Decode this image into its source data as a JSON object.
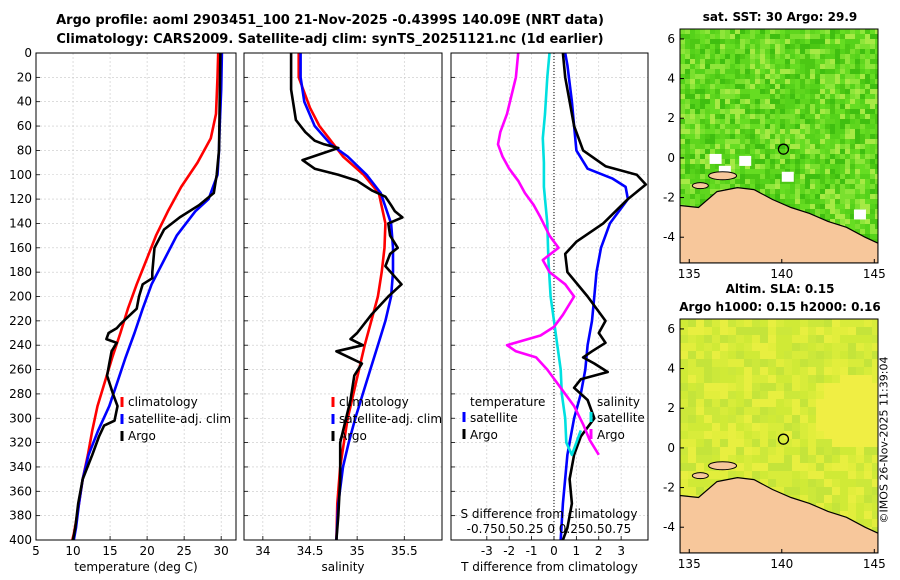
{
  "header": {
    "title_line1": "Argo profile: aoml 2903451_100 21-Nov-2025 -0.4399S 140.09E (NRT data)",
    "title_line2": "Climatology: CARS2009. Satellite-adj clim: synTS_20251121.nc (1d earlier)"
  },
  "colors": {
    "climatology": "#ff0000",
    "satellite": "#0000ff",
    "argo": "#000000",
    "argo_salinity_diff": "#ff00ff",
    "sat_salinity_diff": "#00e0e0",
    "land": "#f7c79b"
  },
  "chart_data": [
    {
      "type": "line",
      "panel": "temperature",
      "xlabel": "temperature (deg C)",
      "ylabel": "",
      "xlim": [
        5,
        32
      ],
      "ylim": [
        400,
        0
      ],
      "xticks": [
        5,
        10,
        15,
        20,
        25,
        30
      ],
      "yticks": [
        0,
        20,
        40,
        60,
        80,
        100,
        120,
        140,
        160,
        180,
        200,
        220,
        240,
        260,
        280,
        300,
        320,
        340,
        360,
        380,
        400
      ],
      "grid": true,
      "legend": [
        "climatology",
        "satellite-adj. clim",
        "Argo"
      ],
      "legend_location": "lower-right",
      "series": [
        {
          "name": "climatology",
          "color": "#ff0000",
          "x": [
            29.6,
            29.5,
            29.3,
            28.6,
            26.8,
            24.6,
            22.8,
            21.2,
            19.9,
            18.6,
            17.4,
            16.4,
            15.3,
            14.3,
            13.3,
            12.6,
            12.0,
            11.3,
            10.8,
            10.4,
            10.1,
            9.9
          ],
          "y": [
            0,
            20,
            50,
            70,
            90,
            110,
            130,
            150,
            170,
            190,
            210,
            230,
            250,
            270,
            290,
            310,
            330,
            350,
            370,
            385,
            395,
            400
          ]
        },
        {
          "name": "satellite-adj. clim",
          "color": "#0000ff",
          "x": [
            30.1,
            30.0,
            29.8,
            29.7,
            29.5,
            28.9,
            28.3,
            26.5,
            24.0,
            22.3,
            20.6,
            19.4,
            18.3,
            17.1,
            16.0,
            14.9,
            13.4,
            12.1,
            11.3,
            10.8,
            10.4,
            10.1
          ],
          "y": [
            0,
            30,
            60,
            80,
            100,
            110,
            120,
            130,
            150,
            170,
            190,
            210,
            230,
            250,
            270,
            290,
            310,
            330,
            350,
            370,
            390,
            400
          ]
        },
        {
          "name": "Argo",
          "color": "#000000",
          "x": [
            29.9,
            29.8,
            29.7,
            29.4,
            29.0,
            27.0,
            24.4,
            22.3,
            21.0,
            20.7,
            20.7,
            19.4,
            18.9,
            18.6,
            16.5,
            15.9,
            14.8,
            14.5,
            15.9,
            15.2,
            14.9,
            14.6,
            15.4,
            16.0,
            15.6,
            14.2,
            13.5,
            12.6,
            11.3,
            10.7,
            10.3,
            10.0
          ],
          "y": [
            0,
            40,
            80,
            100,
            115,
            125,
            135,
            145,
            160,
            180,
            185,
            190,
            200,
            210,
            222,
            226,
            230,
            235,
            238,
            245,
            255,
            265,
            280,
            290,
            302,
            306,
            315,
            330,
            350,
            370,
            390,
            400
          ]
        }
      ]
    },
    {
      "type": "line",
      "panel": "salinity",
      "xlabel": "salinity",
      "ylabel": "",
      "xlim": [
        33.8,
        35.9
      ],
      "ylim": [
        400,
        0
      ],
      "xticks": [
        34,
        34.5,
        35,
        35.5
      ],
      "grid": true,
      "legend": [
        "climatology",
        "satellite-adj. clim",
        "Argo"
      ],
      "legend_location": "lower-right",
      "series": [
        {
          "name": "climatology",
          "color": "#ff0000",
          "x": [
            34.38,
            34.38,
            34.5,
            34.6,
            34.7,
            34.85,
            35.07,
            35.23,
            35.3,
            35.29,
            35.26,
            35.22,
            35.15,
            35.08,
            35.02,
            34.96,
            34.9,
            34.86,
            34.82,
            34.79,
            34.78
          ],
          "y": [
            0,
            20,
            45,
            60,
            70,
            85,
            100,
            115,
            140,
            160,
            180,
            200,
            220,
            240,
            260,
            280,
            300,
            320,
            340,
            370,
            400
          ]
        },
        {
          "name": "satellite-adj. clim",
          "color": "#0000ff",
          "x": [
            34.4,
            34.4,
            34.44,
            34.55,
            34.72,
            34.9,
            35.1,
            35.25,
            35.36,
            35.38,
            35.38,
            35.36,
            35.3,
            35.22,
            35.14,
            35.06,
            34.98,
            34.91,
            34.85,
            34.8,
            34.78
          ],
          "y": [
            0,
            20,
            40,
            60,
            75,
            85,
            100,
            115,
            140,
            160,
            180,
            200,
            220,
            240,
            260,
            280,
            300,
            320,
            340,
            370,
            400
          ]
        },
        {
          "name": "Argo",
          "color": "#000000",
          "x": [
            34.3,
            34.3,
            34.35,
            34.45,
            34.55,
            34.65,
            34.8,
            34.42,
            34.55,
            34.8,
            35.0,
            35.16,
            35.3,
            35.36,
            35.4,
            35.48,
            35.33,
            35.35,
            35.43,
            35.35,
            35.3,
            35.47,
            35.33,
            35.15,
            35.0,
            34.93,
            35.06,
            34.78,
            35.05,
            34.97,
            34.93,
            34.82,
            34.82,
            34.8,
            34.78
          ],
          "y": [
            0,
            30,
            55,
            65,
            72,
            75,
            78,
            88,
            95,
            100,
            105,
            113,
            118,
            125,
            130,
            135,
            140,
            150,
            160,
            165,
            175,
            190,
            200,
            215,
            230,
            235,
            240,
            245,
            255,
            265,
            285,
            320,
            350,
            380,
            400
          ]
        }
      ]
    },
    {
      "type": "line",
      "panel": "differences",
      "xlabel": "T difference from climatology",
      "top_axis_label": "S difference from climatology",
      "top_ticks_text": "-0.750.50.25 0 0.250.50.75",
      "xlim": [
        -4.6,
        4.2
      ],
      "ylim": [
        400,
        0
      ],
      "xticks": [
        -3,
        -2,
        -1,
        0,
        1,
        2,
        3
      ],
      "grid": true,
      "legend_left": [
        "temperature",
        "satellite",
        "Argo"
      ],
      "legend_right": [
        "salinity",
        "satellite",
        "Argo"
      ],
      "series": [
        {
          "name": "T satellite - clim",
          "color": "#0000ff",
          "x": [
            0.5,
            0.6,
            0.8,
            0.9,
            1.0,
            1.5,
            2.6,
            3.2,
            3.3,
            2.5,
            2.1,
            1.9,
            1.8,
            1.7,
            1.5,
            1.4,
            1.2,
            0.9,
            0.6,
            0.4,
            0.3
          ],
          "y": [
            0,
            10,
            40,
            60,
            80,
            95,
            103,
            110,
            120,
            140,
            160,
            180,
            200,
            220,
            240,
            260,
            280,
            300,
            330,
            370,
            400
          ]
        },
        {
          "name": "T Argo - clim",
          "color": "#000000",
          "x": [
            0.4,
            0.5,
            0.9,
            1.3,
            2.3,
            3.7,
            4.1,
            3.3,
            2.2,
            1.0,
            0.5,
            0.6,
            1.5,
            2.3,
            2.0,
            2.3,
            1.7,
            1.3,
            1.8,
            2.4,
            1.2,
            0.9,
            1.5,
            1.8,
            1.2,
            0.9,
            0.7,
            0.8,
            0.6,
            0.4
          ],
          "y": [
            0,
            20,
            60,
            80,
            93,
            100,
            108,
            120,
            140,
            155,
            165,
            180,
            200,
            220,
            230,
            238,
            245,
            250,
            255,
            262,
            268,
            275,
            285,
            300,
            315,
            330,
            350,
            370,
            390,
            400
          ]
        },
        {
          "name": "S satellite - clim",
          "color": "#00e0e0",
          "x": [
            -0.2,
            -0.3,
            -0.4,
            -0.5,
            -0.45,
            -0.45,
            -0.3,
            -0.25,
            -0.15,
            0.0,
            0.15,
            0.3,
            0.35,
            0.5,
            0.55,
            0.8,
            1.2
          ],
          "y": [
            0,
            20,
            50,
            70,
            90,
            110,
            140,
            170,
            200,
            220,
            240,
            260,
            280,
            300,
            320,
            330,
            310
          ]
        },
        {
          "name": "S Argo - clim",
          "color": "#ff00ff",
          "x": [
            -1.6,
            -1.7,
            -2.1,
            -2.4,
            -2.5,
            -2.3,
            -2.0,
            -1.8,
            -1.6,
            -1.3,
            -0.9,
            -0.6,
            -0.2,
            0.2,
            -0.5,
            -0.2,
            0.5,
            0.9,
            0.4,
            0.0,
            -0.6,
            -2.1,
            -1.7,
            -0.8,
            -0.3,
            0.3,
            0.9,
            1.3,
            1.6,
            2.0
          ],
          "y": [
            0,
            20,
            50,
            65,
            75,
            85,
            95,
            100,
            105,
            115,
            125,
            135,
            150,
            160,
            170,
            180,
            190,
            200,
            215,
            225,
            232,
            240,
            245,
            250,
            260,
            275,
            290,
            305,
            318,
            330
          ]
        }
      ]
    },
    {
      "type": "heatmap",
      "panel": "sst_map",
      "title": "sat. SST: 30 Argo: 29.9",
      "xticks": [
        135,
        140,
        145
      ],
      "yticks": [
        6,
        4,
        2,
        0,
        -2,
        -4
      ],
      "xlim": [
        134.5,
        145.2
      ],
      "ylim": [
        -5.3,
        6.5
      ],
      "argo_position": [
        140.09,
        0.44
      ],
      "colormap": "green-sst"
    },
    {
      "type": "heatmap",
      "panel": "sla_map",
      "title_line1": "Altim. SLA: 0.15",
      "title_line2": "Argo h1000: 0.15 h2000: 0.16",
      "xticks": [
        135,
        140,
        145
      ],
      "yticks": [
        6,
        4,
        2,
        0,
        -2,
        -4
      ],
      "xlim": [
        134.5,
        145.2
      ],
      "ylim": [
        -5.3,
        6.5
      ],
      "argo_position": [
        140.09,
        0.44
      ],
      "colormap": "yellow-sla"
    }
  ],
  "footer": {
    "stamp": "©IMOS 26-Nov-2025 11:39:04"
  }
}
